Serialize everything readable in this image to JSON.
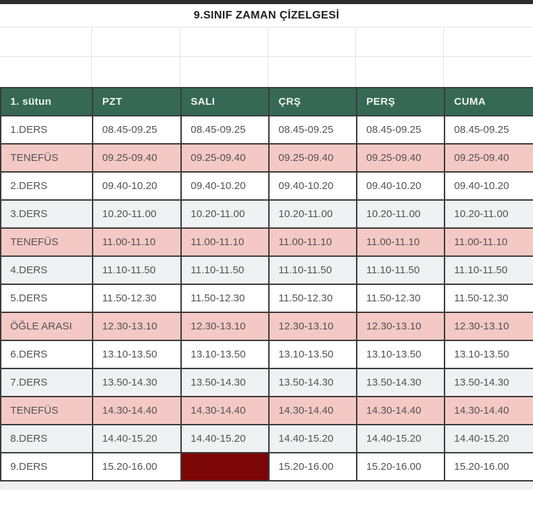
{
  "title": "9.SINIF ZAMAN ÇİZELGESİ",
  "table": {
    "header": {
      "labels": [
        "1. sütun",
        "PZT",
        "SALI",
        "ÇRŞ",
        "PERŞ",
        "CUMA"
      ]
    },
    "rows": [
      {
        "label": "1.DERS",
        "variant": "white",
        "times": [
          "08.45-09.25",
          "08.45-09.25",
          "08.45-09.25",
          "08.45-09.25",
          "08.45-09.25"
        ]
      },
      {
        "label": "TENEFÜS",
        "variant": "break",
        "times": [
          "09.25-09.40",
          "09.25-09.40",
          "09.25-09.40",
          "09.25-09.40",
          "09.25-09.40"
        ]
      },
      {
        "label": "2.DERS",
        "variant": "white",
        "times": [
          "09.40-10.20",
          "09.40-10.20",
          "09.40-10.20",
          "09.40-10.20",
          "09.40-10.20"
        ]
      },
      {
        "label": "3.DERS",
        "variant": "gray",
        "times": [
          "10.20-11.00",
          "10.20-11.00",
          "10.20-11.00",
          "10.20-11.00",
          "10.20-11.00"
        ]
      },
      {
        "label": "TENEFÜS",
        "variant": "break",
        "times": [
          "11.00-11.10",
          "11.00-11.10",
          "11.00-11.10",
          "11.00-11.10",
          "11.00-11.10"
        ]
      },
      {
        "label": "4.DERS",
        "variant": "gray",
        "times": [
          "11.10-11.50",
          "11.10-11.50",
          "11.10-11.50",
          "11.10-11.50",
          "11.10-11.50"
        ]
      },
      {
        "label": "5.DERS",
        "variant": "white",
        "times": [
          "11.50-12.30",
          "11.50-12.30",
          "11.50-12.30",
          "11.50-12.30",
          "11.50-12.30"
        ]
      },
      {
        "label": "ÖĞLE ARASI",
        "variant": "break",
        "times": [
          "12.30-13.10",
          "12.30-13.10",
          "12.30-13.10",
          "12.30-13.10",
          "12.30-13.10"
        ]
      },
      {
        "label": "6.DERS",
        "variant": "white",
        "times": [
          "13.10-13.50",
          "13.10-13.50",
          "13.10-13.50",
          "13.10-13.50",
          "13.10-13.50"
        ]
      },
      {
        "label": "7.DERS",
        "variant": "gray",
        "times": [
          "13.50-14.30",
          "13.50-14.30",
          "13.50-14.30",
          "13.50-14.30",
          "13.50-14.30"
        ]
      },
      {
        "label": "TENEFÜS",
        "variant": "break",
        "times": [
          "14.30-14.40",
          "14.30-14.40",
          "14.30-14.40",
          "14.30-14.40",
          "14.30-14.40"
        ]
      },
      {
        "label": "8.DERS",
        "variant": "gray",
        "times": [
          "14.40-15.20",
          "14.40-15.20",
          "14.40-15.20",
          "14.40-15.20",
          "14.40-15.20"
        ]
      },
      {
        "label": "9.DERS",
        "variant": "white",
        "times": [
          "15.20-16.00",
          "",
          "15.20-16.00",
          "15.20-16.00",
          "15.20-16.00"
        ],
        "blocked_col": 1
      }
    ]
  },
  "colors": {
    "top_bar": "#2d2d2d",
    "title_text": "#1f1f1f",
    "grid_light": "#e4e4e4",
    "border_dark": "#3a3a3a",
    "header_bg": "#366955",
    "header_text": "#edf3ec",
    "break_bg": "#f4c9c5",
    "gray_row_bg": "#eff1f3",
    "white_row_bg": "#ffffff",
    "blocked_bg": "#7c0505",
    "cell_text": "#525252",
    "bottom_strip": "#f1eff0"
  }
}
